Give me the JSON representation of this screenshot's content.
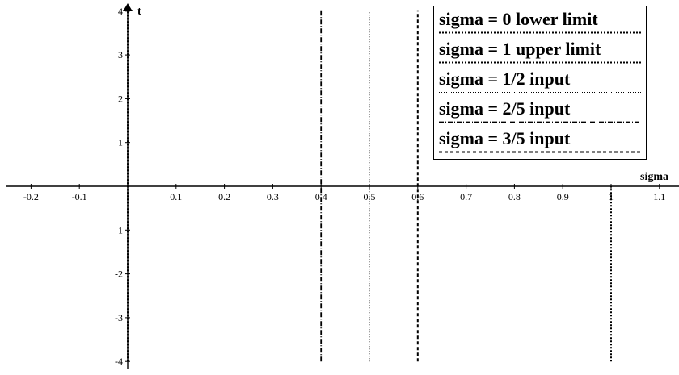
{
  "chart_data": {
    "type": "line",
    "xlabel": "sigma",
    "ylabel": "t",
    "xlim": [
      -0.27,
      1.15
    ],
    "ylim": [
      -4.1,
      4.15
    ],
    "x_ticks": [
      -0.2,
      -0.1,
      0.1,
      0.2,
      0.3,
      0.4,
      0.5,
      0.6,
      0.7,
      0.8,
      0.9,
      1,
      1.1
    ],
    "x_tick_labels": [
      "-0.2",
      "-0.1",
      "0.1",
      "0.2",
      "0.3",
      "0.4",
      "0.5",
      "0.6",
      "0.7",
      "0.8",
      "0.9",
      "1",
      "1.1"
    ],
    "y_ticks": [
      4,
      3,
      2,
      1,
      -1,
      -2,
      -3,
      -4
    ],
    "y_tick_labels": [
      "4",
      "3",
      "2",
      "1",
      "-1",
      "-2",
      "-3",
      "-4"
    ],
    "grid": false,
    "legend_position": "top-right",
    "series": [
      {
        "name": "sigma = 0 lower limit",
        "x": [
          0,
          0
        ],
        "y": [
          -4,
          4
        ],
        "dash": "dotted",
        "color": "#000000"
      },
      {
        "name": "sigma = 1 upper limit",
        "x": [
          1,
          1
        ],
        "y": [
          -4,
          0
        ],
        "dash": "dotted",
        "color": "#000000"
      },
      {
        "name": "sigma = 1/2 input",
        "x": [
          0.5,
          0.5
        ],
        "y": [
          -4,
          4
        ],
        "dash": "fine-dotted",
        "color": "#000000"
      },
      {
        "name": "sigma = 2/5 input",
        "x": [
          0.4,
          0.4
        ],
        "y": [
          -4,
          4
        ],
        "dash": "dash-dot",
        "color": "#000000"
      },
      {
        "name": "sigma = 3/5 input",
        "x": [
          0.6,
          0.6
        ],
        "y": [
          -4,
          4
        ],
        "dash": "dashed",
        "color": "#000000"
      }
    ]
  }
}
